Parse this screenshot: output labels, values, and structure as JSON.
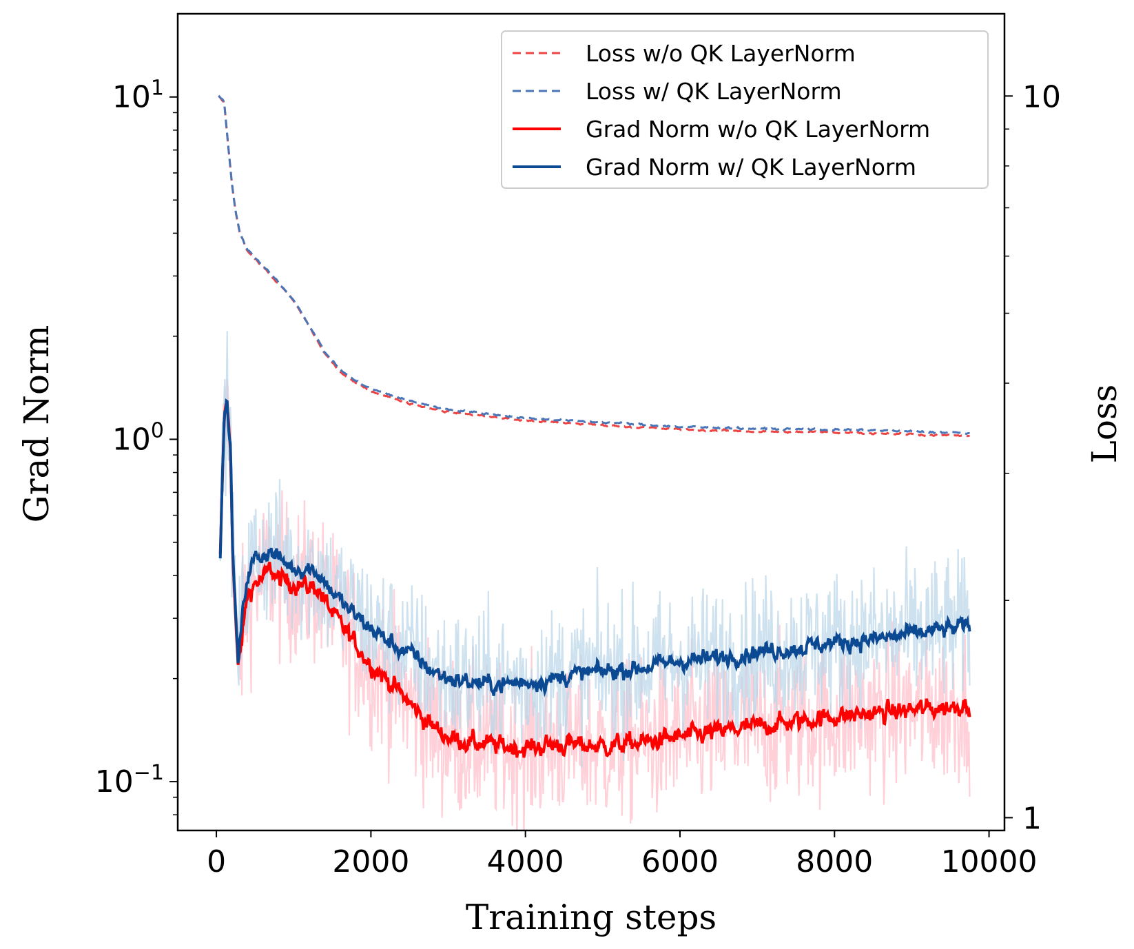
{
  "chart_data": {
    "type": "line",
    "xlabel": "Training steps",
    "ylabel_left": "Grad Norm",
    "ylabel_right": "Loss",
    "xlim": [
      -500,
      10200
    ],
    "xticks": [
      0,
      2000,
      4000,
      6000,
      8000,
      10000
    ],
    "xtick_labels": [
      "0",
      "2000",
      "4000",
      "6000",
      "8000",
      "10000"
    ],
    "left_axis": {
      "scale": "log",
      "ylim": [
        0.072,
        17.5
      ],
      "ticks": [
        {
          "value": 10,
          "base": "10",
          "exp": "1"
        },
        {
          "value": 1,
          "base": "10",
          "exp": "0"
        },
        {
          "value": 0.1,
          "base": "10",
          "exp": "−1"
        }
      ]
    },
    "right_axis": {
      "scale": "log",
      "ylim": [
        0.96,
        13.0
      ],
      "ticks": [
        {
          "value": 10,
          "label": "10"
        },
        {
          "value": 1,
          "label": "1"
        }
      ]
    },
    "legend": {
      "position": "upper right",
      "entries": [
        {
          "label": "Loss w/o QK LayerNorm",
          "color": "#ef4444",
          "style": "dashed"
        },
        {
          "label": "Loss w/ QK LayerNorm",
          "color": "#4a76b8",
          "style": "dashed"
        },
        {
          "label": "Grad Norm w/o QK LayerNorm",
          "color": "#ff0000",
          "style": "solid"
        },
        {
          "label": "Grad Norm w/ QK LayerNorm",
          "color": "#0b4a92",
          "style": "solid"
        }
      ]
    },
    "series": [
      {
        "name": "Grad Norm w/o QK LayerNorm",
        "axis": "left",
        "color": "#ff0000",
        "raw_color": "#ffc0cb",
        "noise": 0.22,
        "x": [
          50,
          100,
          130,
          180,
          220,
          280,
          320,
          400,
          500,
          600,
          700,
          800,
          1000,
          1200,
          1300,
          1500,
          1700,
          2000,
          2300,
          2600,
          2800,
          3000,
          3300,
          3600,
          4000,
          4300,
          4600,
          5000,
          5500,
          6000,
          6500,
          7000,
          7500,
          8000,
          8500,
          9000,
          9500,
          9750
        ],
        "values": [
          0.45,
          1.1,
          1.32,
          0.95,
          0.42,
          0.21,
          0.25,
          0.35,
          0.38,
          0.39,
          0.42,
          0.39,
          0.38,
          0.37,
          0.37,
          0.31,
          0.27,
          0.22,
          0.19,
          0.16,
          0.145,
          0.135,
          0.13,
          0.128,
          0.125,
          0.128,
          0.128,
          0.127,
          0.13,
          0.135,
          0.14,
          0.145,
          0.15,
          0.155,
          0.158,
          0.162,
          0.165,
          0.17
        ]
      },
      {
        "name": "Grad Norm w/ QK LayerNorm",
        "axis": "left",
        "color": "#0b4a92",
        "raw_color": "#bcd7ea",
        "noise": 0.2,
        "x": [
          50,
          100,
          130,
          180,
          220,
          280,
          320,
          400,
          500,
          600,
          700,
          800,
          1000,
          1200,
          1300,
          1500,
          1700,
          2000,
          2300,
          2600,
          2800,
          3000,
          3300,
          3600,
          4000,
          4300,
          4600,
          5000,
          5500,
          6000,
          6500,
          7000,
          7500,
          8000,
          8500,
          9000,
          9500,
          9750
        ],
        "values": [
          0.45,
          1.1,
          1.32,
          0.95,
          0.42,
          0.22,
          0.28,
          0.4,
          0.45,
          0.46,
          0.47,
          0.45,
          0.42,
          0.42,
          0.41,
          0.36,
          0.32,
          0.28,
          0.25,
          0.23,
          0.21,
          0.2,
          0.195,
          0.192,
          0.195,
          0.198,
          0.205,
          0.21,
          0.215,
          0.225,
          0.23,
          0.24,
          0.245,
          0.255,
          0.26,
          0.27,
          0.28,
          0.285
        ]
      },
      {
        "name": "Loss w/o QK LayerNorm",
        "axis": "right",
        "color": "#ef4444",
        "noise": 0.006,
        "x": [
          30,
          100,
          150,
          200,
          250,
          300,
          400,
          600,
          800,
          1000,
          1200,
          1400,
          1600,
          1800,
          2000,
          2500,
          3000,
          3500,
          4000,
          5000,
          6000,
          7000,
          8000,
          9000,
          9750
        ],
        "values": [
          10.0,
          9.8,
          8.6,
          7.6,
          6.9,
          6.5,
          6.1,
          5.8,
          5.5,
          5.2,
          4.8,
          4.4,
          4.15,
          4.0,
          3.9,
          3.75,
          3.65,
          3.6,
          3.55,
          3.5,
          3.45,
          3.43,
          3.42,
          3.4,
          3.38
        ]
      },
      {
        "name": "Loss w/ QK LayerNorm",
        "axis": "right",
        "color": "#4a76b8",
        "noise": 0.006,
        "x": [
          30,
          100,
          150,
          200,
          250,
          300,
          400,
          600,
          800,
          1000,
          1200,
          1400,
          1600,
          1800,
          2000,
          2500,
          3000,
          3500,
          4000,
          5000,
          6000,
          7000,
          8000,
          9000,
          9750
        ],
        "values": [
          10.0,
          9.8,
          8.6,
          7.6,
          6.9,
          6.5,
          6.12,
          5.82,
          5.52,
          5.22,
          4.82,
          4.42,
          4.18,
          4.03,
          3.93,
          3.78,
          3.68,
          3.63,
          3.58,
          3.53,
          3.48,
          3.46,
          3.45,
          3.43,
          3.41
        ]
      }
    ]
  }
}
